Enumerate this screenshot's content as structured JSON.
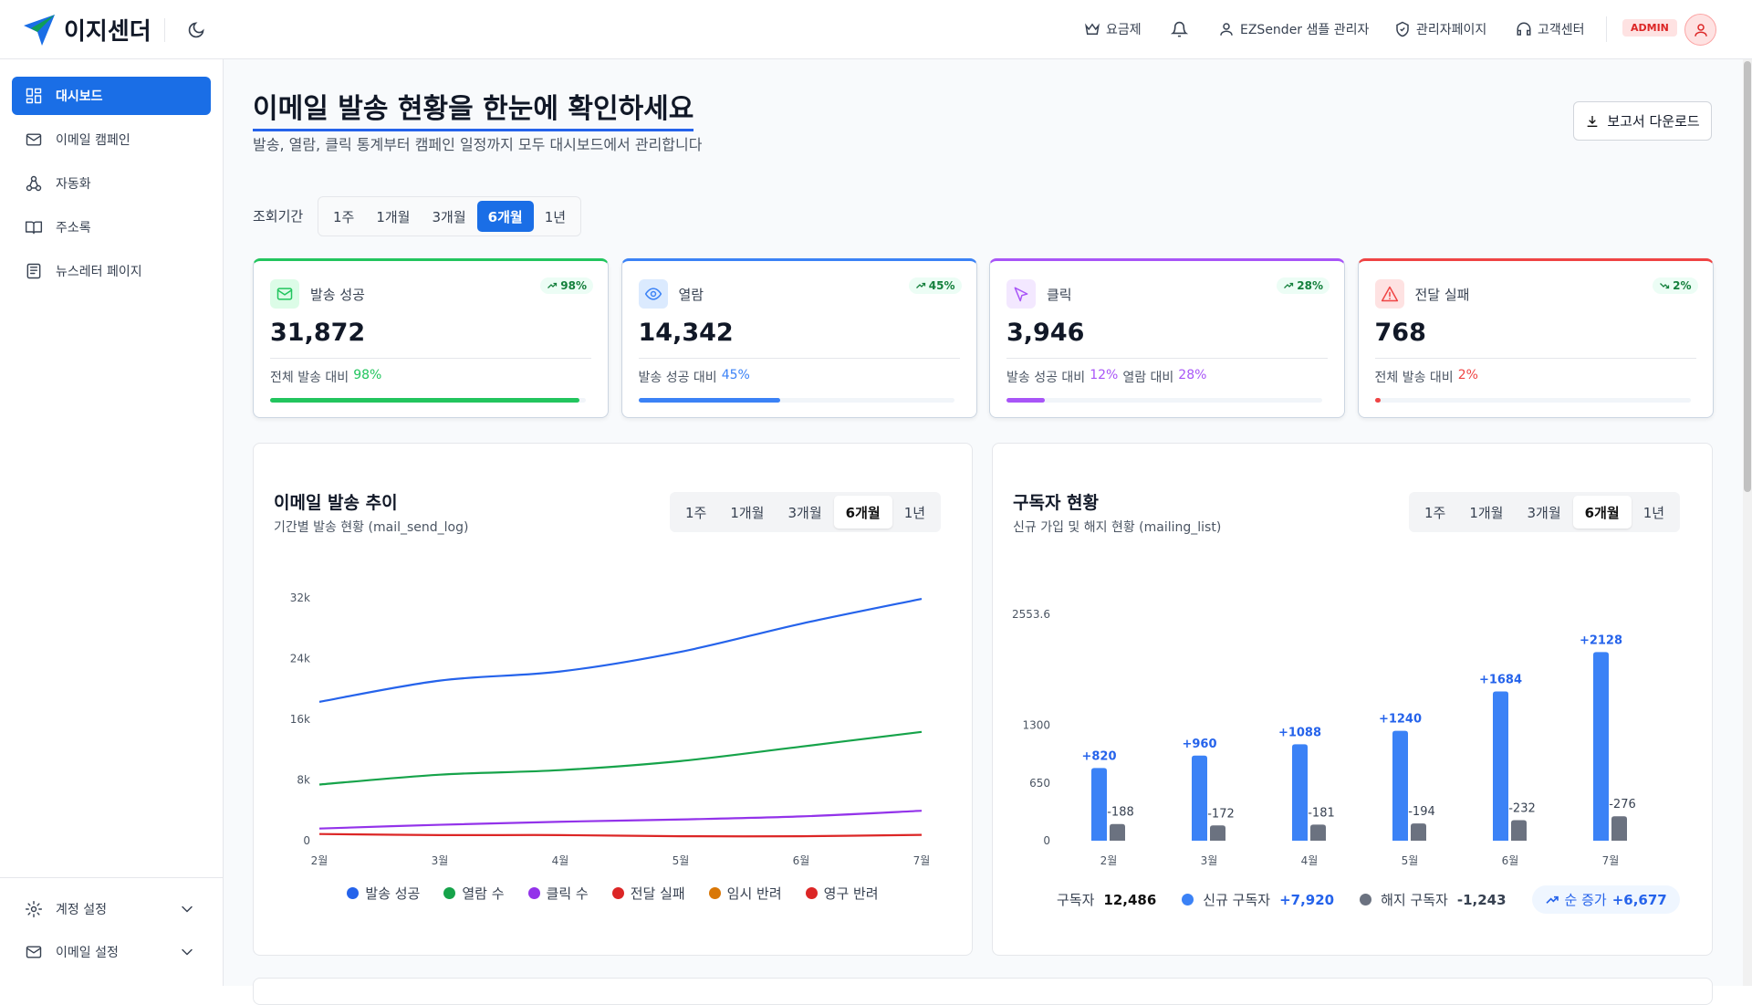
{
  "header": {
    "brand": "이지센더",
    "menu": [
      "요금제",
      "EZSender 샘플 관리자",
      "관리자페이지",
      "고객센터"
    ],
    "role": "ADMIN"
  },
  "sidebar": {
    "nav": [
      "대시보드",
      "이메일 캠페인",
      "자동화",
      "주소록",
      "뉴스레터 페이지"
    ],
    "active": 0,
    "settings": [
      "계정 설정",
      "이메일 설정"
    ]
  },
  "page": {
    "title": "이메일 발송 현황을 한눈에 확인하세요",
    "subtitle": "발송, 열람, 클릭 통계부터 캠페인 일정까지 모두 대시보드에서 관리합니다",
    "download": "보고서 다운로드",
    "period_label": "조회기간"
  },
  "period_tabs": [
    "1주",
    "1개월",
    "3개월",
    "6개월",
    "1년"
  ],
  "period_active": 3,
  "cards": [
    {
      "label": "발송 성공",
      "value": "31,872",
      "badge": "98%",
      "trend": "up",
      "desc": [
        "전체 발송 대비",
        "98%"
      ],
      "progress": 98,
      "color": "#22c55e"
    },
    {
      "label": "열람",
      "value": "14,342",
      "badge": "45%",
      "trend": "up",
      "desc": [
        "발송 성공 대비",
        "45%"
      ],
      "progress": 45,
      "color": "#3b82f6"
    },
    {
      "label": "클릭",
      "value": "3,946",
      "badge": "28%",
      "trend": "up",
      "desc": [
        "발송 성공 대비",
        "12%",
        "열람 대비",
        "28%"
      ],
      "progress": 12,
      "color": "#a855f7"
    },
    {
      "label": "전달 실패",
      "value": "768",
      "badge": "2%",
      "trend": "down",
      "desc": [
        "전체 발송 대비",
        "2%"
      ],
      "progress": 2,
      "color": "#ef4444"
    }
  ],
  "chart_data": [
    {
      "type": "line",
      "title": "이메일 발송 추이",
      "subtitle": "기간별 발송 현황 (mail_send_log)",
      "categories": [
        "2월",
        "3월",
        "4월",
        "5월",
        "6월",
        "7월"
      ],
      "ylim": [
        0,
        32000
      ],
      "yticks": [
        0,
        {
          "value": 8000,
          "label": "8k"
        },
        {
          "value": 16000,
          "label": "16k"
        },
        {
          "value": 24000,
          "label": "24k"
        },
        {
          "value": 32000,
          "label": "32k"
        }
      ],
      "grid": false,
      "series": [
        {
          "name": "발송 성공",
          "color": "#2563eb",
          "values": [
            18300,
            21100,
            22300,
            24900,
            28600,
            31872
          ]
        },
        {
          "name": "열람 수",
          "color": "#16a34a",
          "values": [
            7400,
            8700,
            9300,
            10500,
            12400,
            14342
          ]
        },
        {
          "name": "클릭 수",
          "color": "#9333ea",
          "values": [
            1600,
            2100,
            2500,
            2800,
            3200,
            3946
          ]
        },
        {
          "name": "전달 실패",
          "color": "#dc2626",
          "values": [
            880,
            740,
            740,
            590,
            590,
            768
          ]
        },
        {
          "name": "임시 반려",
          "color": "#d97706",
          "values": [
            null,
            null,
            null,
            null,
            null,
            null
          ]
        },
        {
          "name": "영구 반려",
          "color": "#dc2626",
          "values": [
            null,
            null,
            null,
            null,
            null,
            null
          ]
        }
      ]
    },
    {
      "type": "bar",
      "title": "구독자 현황",
      "subtitle": "신규 가입 및 해지 현황 (mailing_list)",
      "categories": [
        "2월",
        "3월",
        "4월",
        "5월",
        "6월",
        "7월"
      ],
      "ylim": [
        0,
        2553.6
      ],
      "yticks": [
        0,
        650,
        1300,
        2553.6
      ],
      "grid": false,
      "series": [
        {
          "name": "신규 구독자",
          "color": "#3b82f6",
          "values": [
            820,
            960,
            1088,
            1240,
            1684,
            2128
          ],
          "value_labels": [
            "+820",
            "+960",
            "+1088",
            "+1240",
            "+1684",
            "+2128"
          ]
        },
        {
          "name": "해지 구독자",
          "color": "#6b7280",
          "values": [
            188,
            172,
            181,
            194,
            232,
            276
          ],
          "value_labels": [
            "-188",
            "-172",
            "-181",
            "-194",
            "-232",
            "-276"
          ]
        }
      ]
    }
  ],
  "subscriber_summary": {
    "total_label": "구독자",
    "total": "12,486",
    "new_total": "+7,920",
    "churn_total": "-1,243",
    "net_label": "순 증가",
    "net": "+6,677"
  }
}
